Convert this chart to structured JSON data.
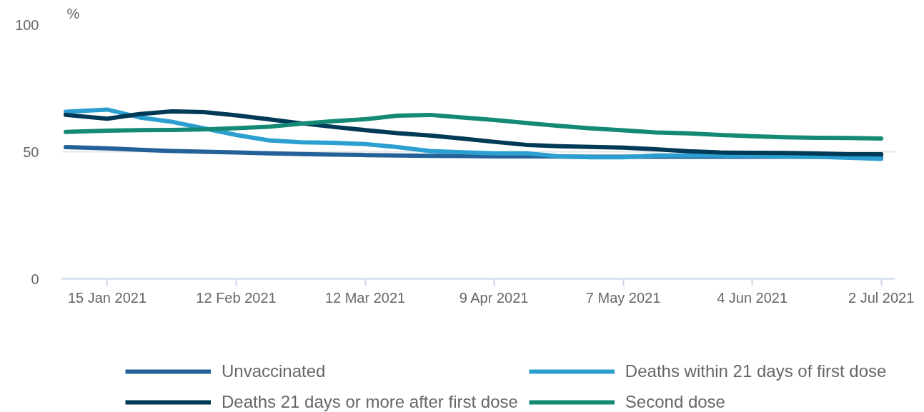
{
  "chart_data": {
    "type": "line",
    "ylabel": "%",
    "x": [
      "2021-01-06",
      "2021-01-15",
      "2021-01-22",
      "2021-01-29",
      "2021-02-05",
      "2021-02-12",
      "2021-02-19",
      "2021-02-26",
      "2021-03-05",
      "2021-03-12",
      "2021-03-19",
      "2021-03-26",
      "2021-04-02",
      "2021-04-09",
      "2021-04-16",
      "2021-04-23",
      "2021-04-30",
      "2021-05-07",
      "2021-05-14",
      "2021-05-21",
      "2021-05-28",
      "2021-06-04",
      "2021-06-11",
      "2021-06-18",
      "2021-06-25",
      "2021-07-02"
    ],
    "series": [
      {
        "name": "Unvaccinated",
        "color": "#236198",
        "values": [
          51.8,
          51.3,
          50.8,
          50.3,
          50.0,
          49.7,
          49.4,
          49.1,
          48.9,
          48.7,
          48.5,
          48.4,
          48.3,
          48.2,
          48.2,
          48.1,
          48.0,
          48.0,
          48.0,
          48.0,
          48.0,
          48.0,
          48.0,
          48.0,
          48.0,
          47.9
        ]
      },
      {
        "name": "Deaths within 21 days of first dose",
        "color": "#2a9fd0",
        "values": [
          65.7,
          66.6,
          63.5,
          61.8,
          59.2,
          56.6,
          54.5,
          53.7,
          53.5,
          53.0,
          51.8,
          50.3,
          49.8,
          49.4,
          49.4,
          48.2,
          47.8,
          47.8,
          48.5,
          48.5,
          48.5,
          48.4,
          48.2,
          48.0,
          47.6,
          47.2
        ]
      },
      {
        "name": "Deaths 21 days or more after first dose",
        "color": "#003a57",
        "values": [
          64.5,
          63.0,
          64.8,
          65.9,
          65.6,
          64.3,
          62.8,
          61.2,
          59.8,
          58.5,
          57.3,
          56.4,
          55.2,
          53.9,
          52.7,
          52.2,
          51.9,
          51.6,
          51.0,
          50.2,
          49.7,
          49.6,
          49.5,
          49.3,
          49.0,
          49.0
        ]
      },
      {
        "name": "Second dose",
        "color": "#148a75",
        "values": [
          57.8,
          58.3,
          58.5,
          58.6,
          58.8,
          59.3,
          59.8,
          61.0,
          62.0,
          62.8,
          64.2,
          64.5,
          63.5,
          62.5,
          61.3,
          60.2,
          59.2,
          58.4,
          57.6,
          57.2,
          56.6,
          56.1,
          55.7,
          55.5,
          55.4,
          55.2
        ]
      }
    ],
    "xlim": [
      "2021-01-05",
      "2021-07-05"
    ],
    "xticks": [
      {
        "value": "2021-01-15",
        "label": "15 Jan 2021"
      },
      {
        "value": "2021-02-12",
        "label": "12 Feb 2021"
      },
      {
        "value": "2021-03-12",
        "label": "12 Mar 2021"
      },
      {
        "value": "2021-04-09",
        "label": "9 Apr 2021"
      },
      {
        "value": "2021-05-07",
        "label": "7 May 2021"
      },
      {
        "value": "2021-06-04",
        "label": "4 Jun 2021"
      },
      {
        "value": "2021-07-02",
        "label": "2 Jul 2021"
      }
    ],
    "ylim": [
      0,
      100
    ],
    "yticks": [
      0,
      50,
      100
    ],
    "grid": "y",
    "legend": "bottom",
    "marker": "none",
    "line_style": "solid"
  }
}
